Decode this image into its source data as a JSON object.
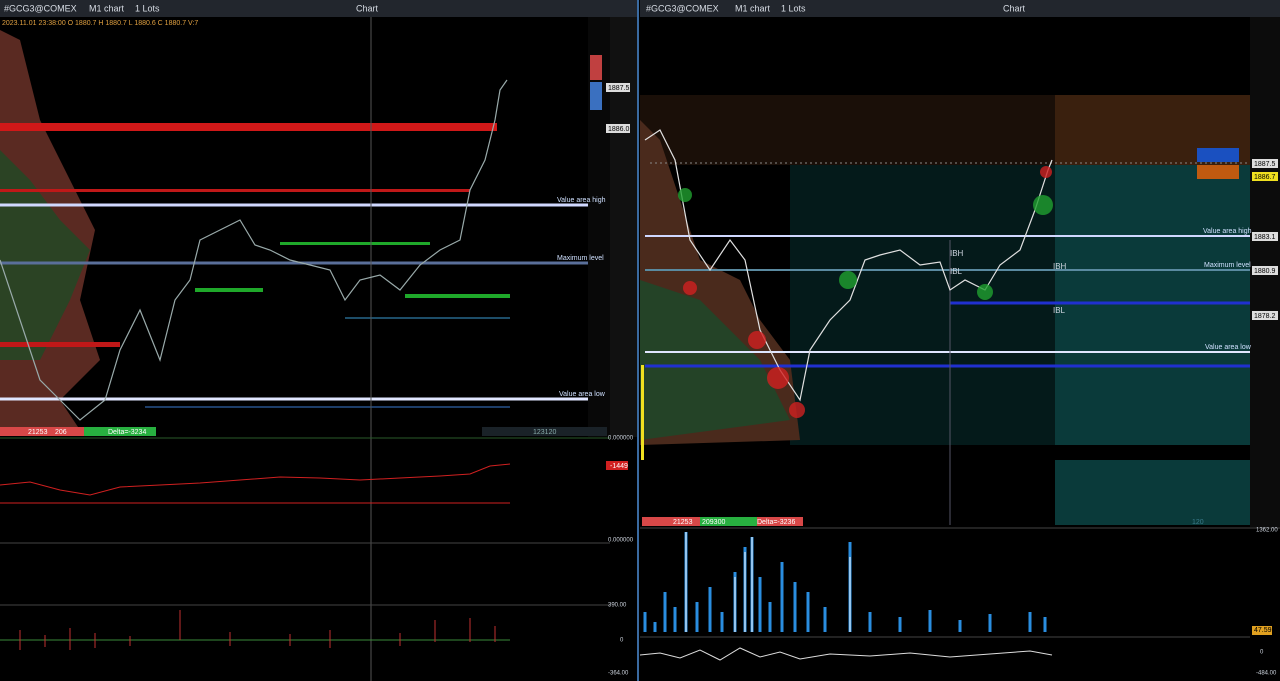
{
  "left_panel": {
    "toolbar": {
      "symbol": "#GCG3@COMEX",
      "timeframe": "M1 chart",
      "lots": "1 Lots",
      "title": "Chart"
    },
    "info": "2023.11.01 23:38:00 O 1880.7 H 1880.7 L 1880.6 C 1880.7 V:7",
    "levels": {
      "value_area_high": "Value area high",
      "maximum_level": "Maximum level",
      "value_area_low": "Value area low"
    },
    "price_labels": [
      "1887.5",
      "1886.0"
    ],
    "footer": {
      "volume": "21253",
      "trades": "206",
      "delta": "Delta=-3234",
      "total": "123120"
    },
    "indicator_labels": [
      "0.000000",
      "-1449",
      "0.000000",
      "390.00",
      "0",
      "-364.00"
    ]
  },
  "right_panel": {
    "toolbar": {
      "symbol": "#GCG3@COMEX",
      "timeframe": "M1 chart",
      "lots": "1 Lots",
      "title": "Chart"
    },
    "levels": {
      "value_area_high": "Value area high",
      "maximum_level": "Maximum level",
      "value_area_low": "Value area low",
      "ibh": "IBH",
      "ibl": "IBL",
      "ibh_right": "IBH",
      "ibl_right": "IBL"
    },
    "price_labels": [
      "1887.5",
      "1886.7",
      "1883.1",
      "1880.9",
      "1878.2"
    ],
    "footer": {
      "volume": "21253",
      "trades": "209300",
      "delta": "Delta=-3236",
      "total": "120"
    },
    "indicator_labels": [
      "1362.00",
      "47.59",
      "0",
      "-484.00"
    ]
  }
}
